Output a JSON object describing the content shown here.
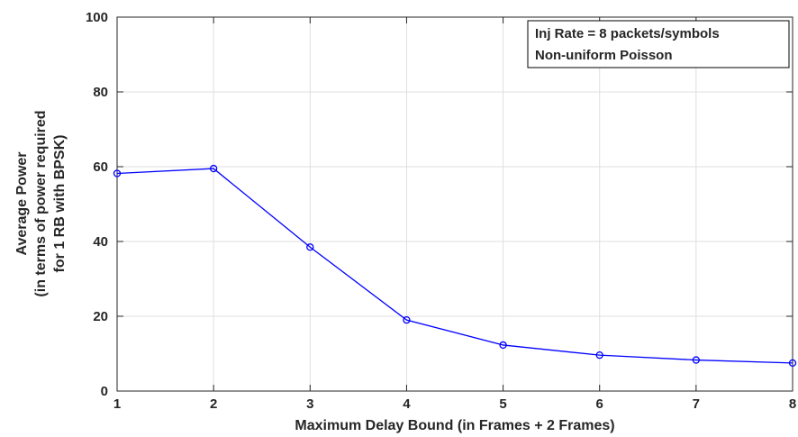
{
  "chart_data": {
    "type": "line",
    "title": "",
    "xlabel": "Maximum Delay Bound (in Frames + 2 Frames)",
    "ylabel_lines": [
      "Average Power",
      "(in terms of power required",
      "for 1 RB with BPSK)"
    ],
    "xlim": [
      1,
      8
    ],
    "ylim": [
      0,
      100
    ],
    "xticks": [
      1,
      2,
      3,
      4,
      5,
      6,
      7,
      8
    ],
    "yticks": [
      0,
      20,
      40,
      60,
      80,
      100
    ],
    "grid": true,
    "legend_position": "top-right",
    "annotation_lines": [
      "Inj Rate = 8 packets/symbols",
      "Non-uniform Poisson"
    ],
    "series": [
      {
        "x": [
          1,
          2,
          3,
          4,
          5,
          6,
          7,
          8
        ],
        "values": [
          58.2,
          59.5,
          38.5,
          19.0,
          12.3,
          9.6,
          8.3,
          7.5
        ],
        "color": "#0000ff",
        "marker": "circle"
      }
    ]
  }
}
